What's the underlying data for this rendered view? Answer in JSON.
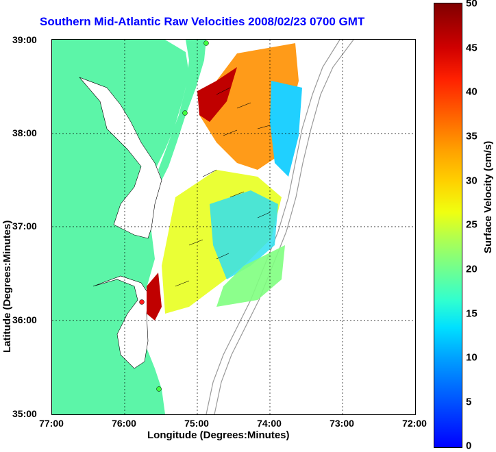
{
  "title": "Southern Mid-Atlantic Raw Velocities 2008/02/23 0700 GMT",
  "x_axis": {
    "label": "Longitude (Degrees:Minutes)",
    "ticks": [
      "77:00",
      "76:00",
      "75:00",
      "74:00",
      "73:00",
      "72:00"
    ]
  },
  "y_axis": {
    "label": "Latitude (Degrees:Minutes)",
    "ticks": [
      "39:00",
      "38:00",
      "37:00",
      "36:00",
      "35:00"
    ]
  },
  "colorbar": {
    "label": "Surface Velocity (cm/s)",
    "ticks": [
      "50",
      "45",
      "40",
      "35",
      "30",
      "25",
      "20",
      "15",
      "10",
      "5",
      "0"
    ]
  },
  "colors": {
    "title": "#0000ff",
    "land": "#5cf5a8",
    "water": "#ffffff",
    "grid": "#000000",
    "bathymetry": "#999999"
  }
}
